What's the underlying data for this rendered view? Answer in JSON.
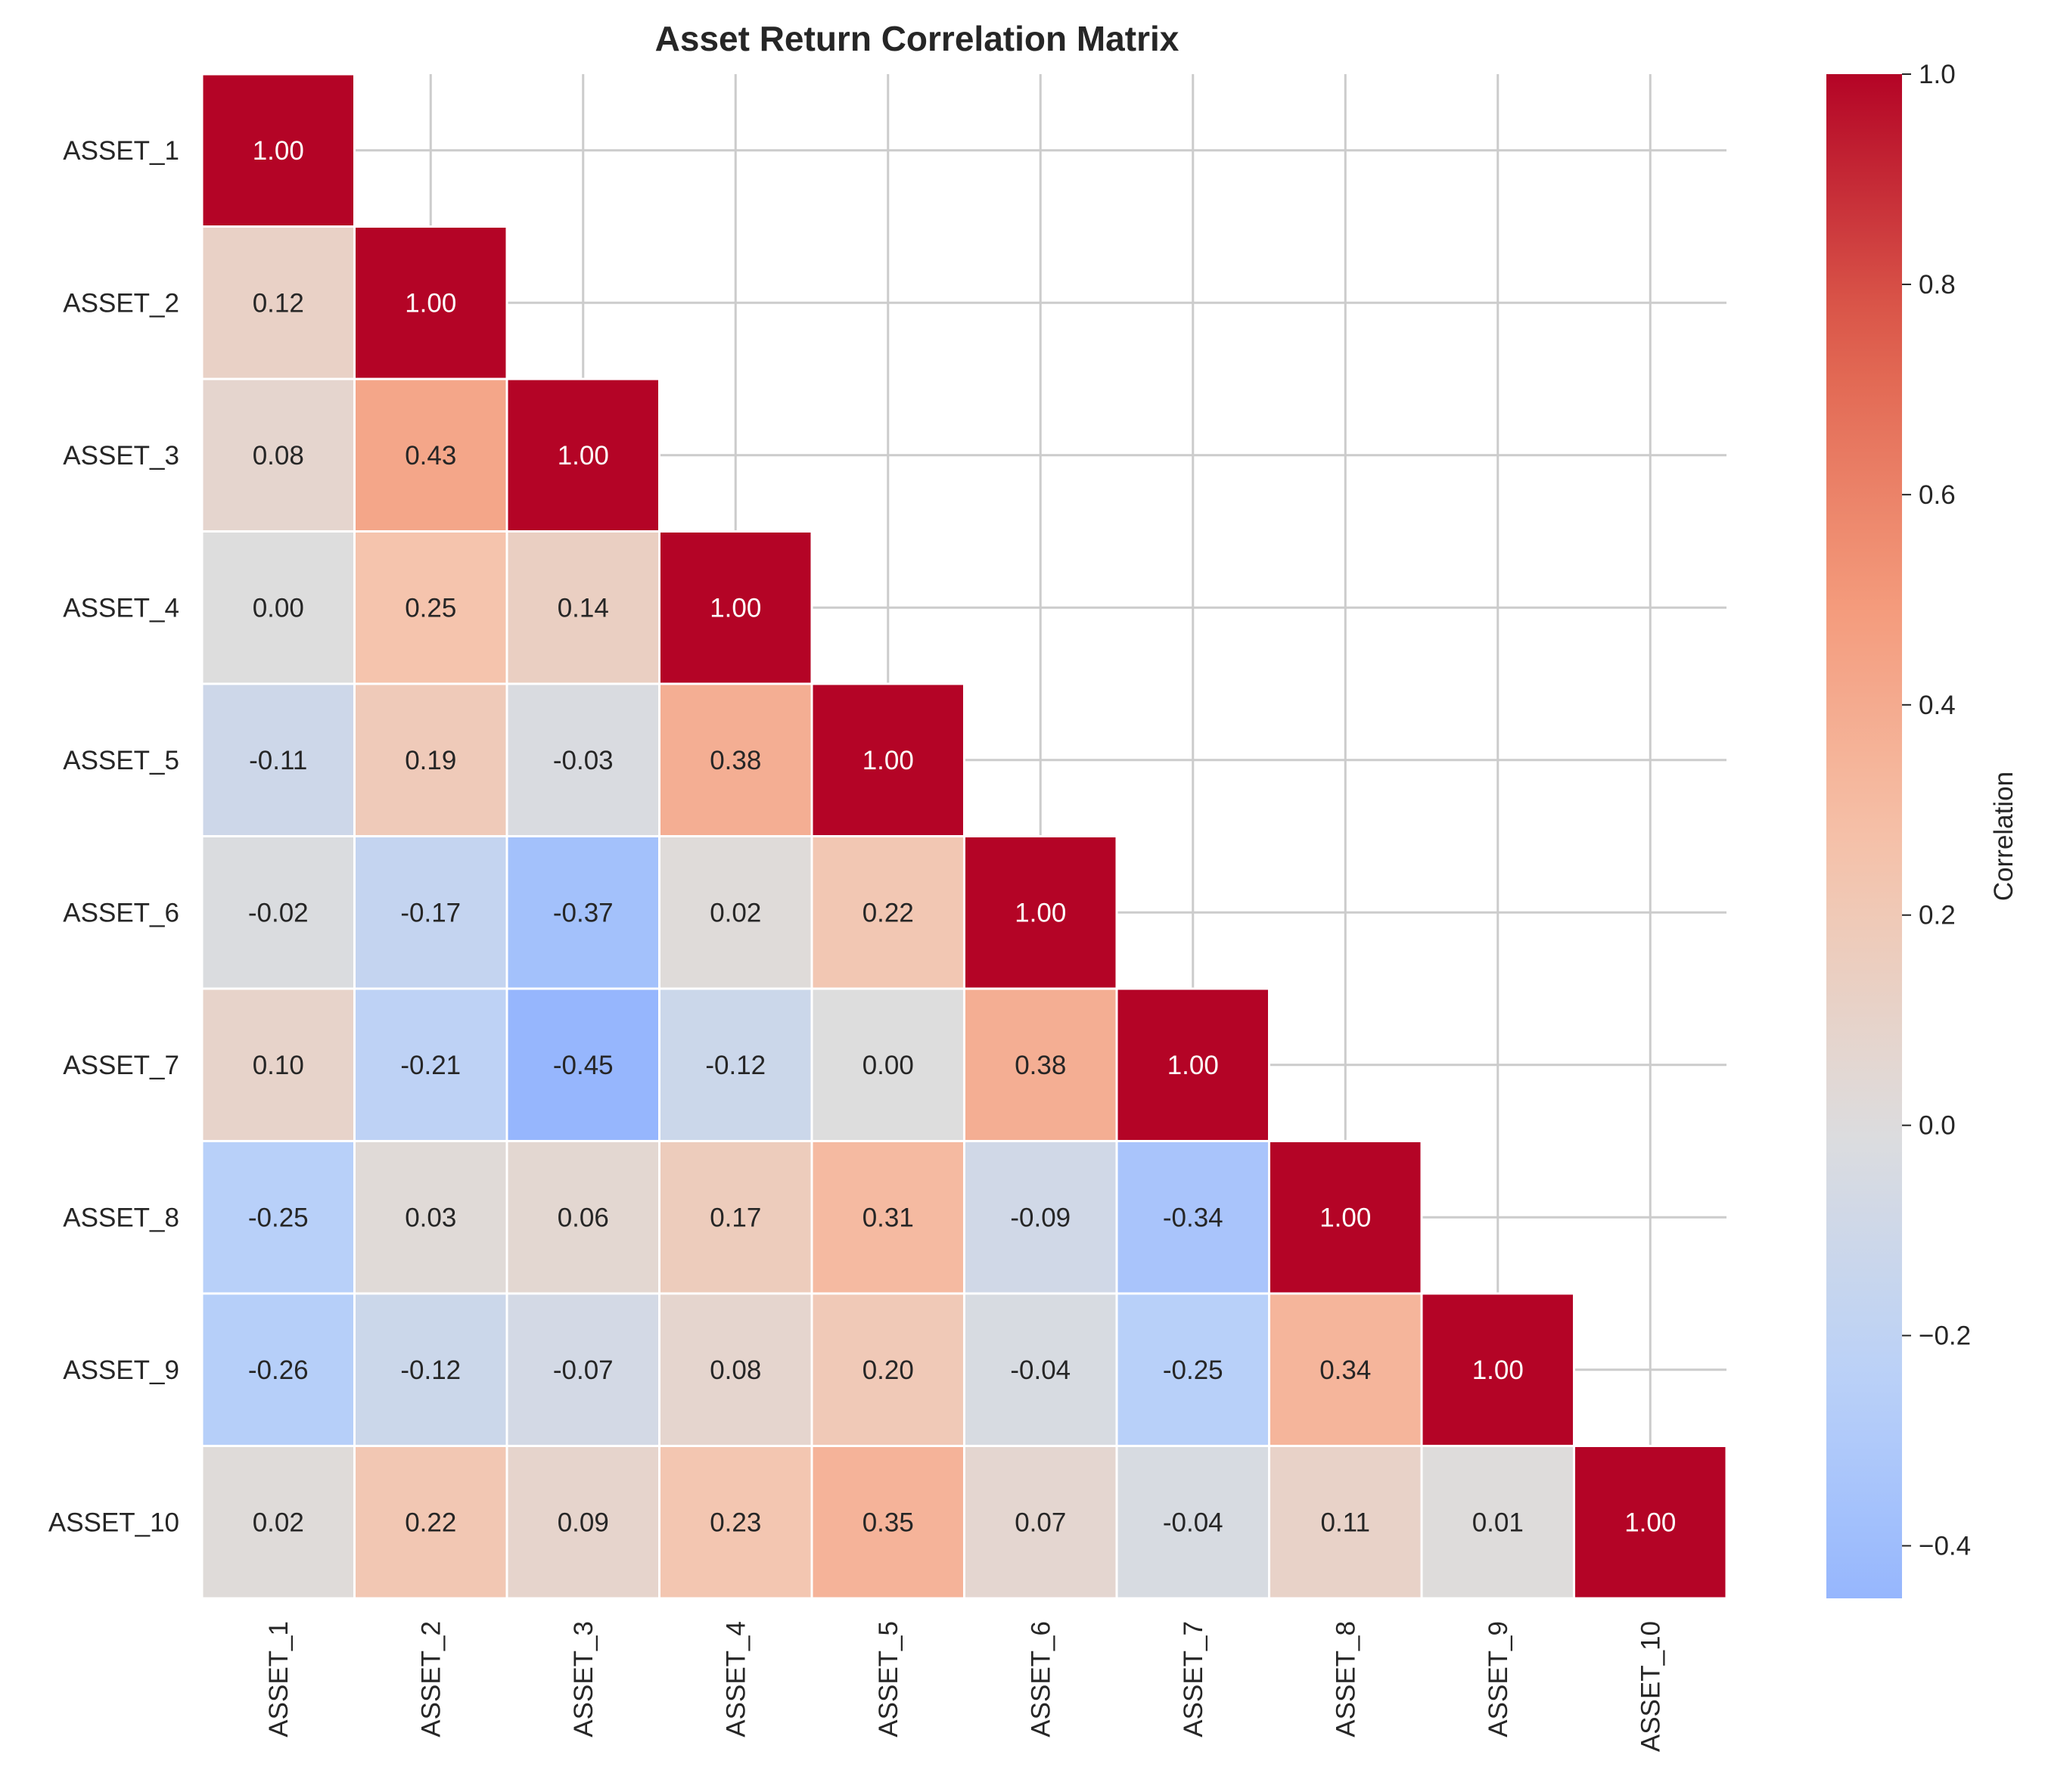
{
  "chart_data": {
    "type": "heatmap",
    "title": "Asset Return Correlation Matrix",
    "labels": [
      "ASSET_1",
      "ASSET_2",
      "ASSET_3",
      "ASSET_4",
      "ASSET_5",
      "ASSET_6",
      "ASSET_7",
      "ASSET_8",
      "ASSET_9",
      "ASSET_10"
    ],
    "matrix": [
      [
        1.0,
        null,
        null,
        null,
        null,
        null,
        null,
        null,
        null,
        null
      ],
      [
        0.12,
        1.0,
        null,
        null,
        null,
        null,
        null,
        null,
        null,
        null
      ],
      [
        0.08,
        0.43,
        1.0,
        null,
        null,
        null,
        null,
        null,
        null,
        null
      ],
      [
        0.0,
        0.25,
        0.14,
        1.0,
        null,
        null,
        null,
        null,
        null,
        null
      ],
      [
        -0.11,
        0.19,
        -0.03,
        0.38,
        1.0,
        null,
        null,
        null,
        null,
        null
      ],
      [
        -0.02,
        -0.17,
        -0.37,
        0.02,
        0.22,
        1.0,
        null,
        null,
        null,
        null
      ],
      [
        0.1,
        -0.21,
        -0.45,
        -0.12,
        0.0,
        0.38,
        1.0,
        null,
        null,
        null
      ],
      [
        -0.25,
        0.03,
        0.06,
        0.17,
        0.31,
        -0.09,
        -0.34,
        1.0,
        null,
        null
      ],
      [
        -0.26,
        -0.12,
        -0.07,
        0.08,
        0.2,
        -0.04,
        -0.25,
        0.34,
        1.0,
        null
      ],
      [
        0.02,
        0.22,
        0.09,
        0.23,
        0.35,
        0.07,
        -0.04,
        0.11,
        0.01,
        1.0
      ]
    ],
    "value_format": "0.00",
    "mask": "upper-triangle",
    "colormap": "coolwarm",
    "center": 0.0,
    "vmin": -0.45,
    "vmax": 1.0,
    "colorbar": {
      "label": "Correlation",
      "ticks": [
        -0.4,
        -0.2,
        0.0,
        0.2,
        0.4,
        0.6,
        0.8,
        1.0
      ],
      "tick_labels": [
        "−0.4",
        "−0.2",
        "0.0",
        "0.2",
        "0.4",
        "0.6",
        "0.8",
        "1.0"
      ]
    },
    "grid": true,
    "colors": {
      "grid": "#cccccc",
      "cell_border": "#ffffff",
      "text": "#262626"
    }
  }
}
